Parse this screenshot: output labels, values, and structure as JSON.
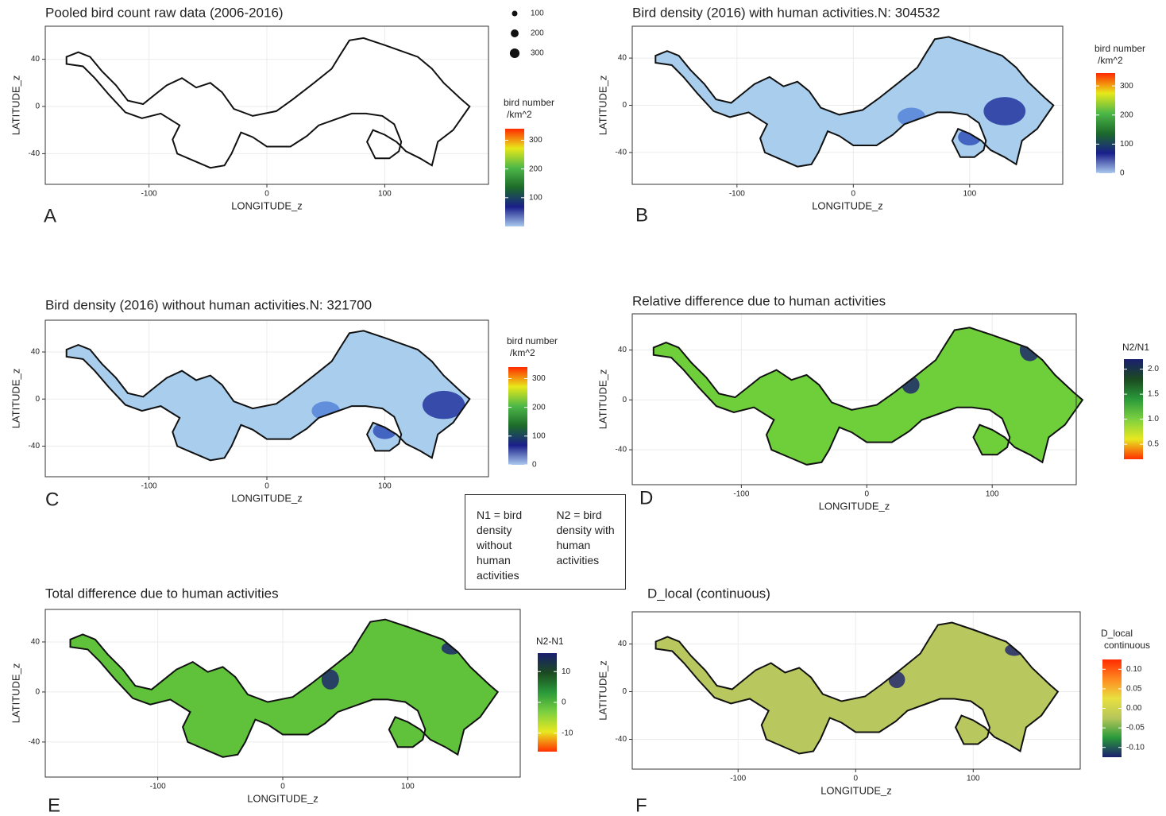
{
  "chart_data": [
    {
      "type": "map",
      "title": "Pooled bird count raw data (2006-2016)",
      "x_label": "LONGITUDE_z",
      "y_label": "LATITUDE_z",
      "panel_label": "A",
      "xlim": [
        -188,
        188
      ],
      "ylim": [
        -66,
        68
      ],
      "xticks": [
        -100,
        0,
        100
      ],
      "yticks": [
        -40,
        0,
        40
      ],
      "grid": true,
      "colorbar": {
        "title": [
          "bird number",
          "/km^2"
        ],
        "lim": [
          0,
          340
        ],
        "ticks": [
          100,
          200,
          300
        ],
        "colors": [
          "#a9c8ee",
          "#1a1f8a",
          "#1d6b2a",
          "#4db848",
          "#e8e81a",
          "#ff2a00"
        ]
      },
      "size_legend": {
        "values": [
          100,
          200,
          300
        ]
      }
    },
    {
      "type": "map",
      "title": "Bird density (2016) with human activities.N: 304532",
      "x_label": "LONGITUDE_z",
      "y_label": "LATITUDE_z",
      "panel_label": "B",
      "xlim": [
        -190,
        180
      ],
      "ylim": [
        -67,
        67
      ],
      "xticks": [
        -100,
        0,
        100
      ],
      "yticks": [
        -40,
        0,
        40
      ],
      "grid": true,
      "colorbar": {
        "title": [
          "bird number",
          "/km^2"
        ],
        "lim": [
          0,
          344
        ],
        "ticks": [
          0,
          100,
          200,
          300
        ],
        "colors": [
          "#a9c8ee",
          "#1a1f8a",
          "#1d6b2a",
          "#4db848",
          "#e8e81a",
          "#ff2a00"
        ]
      }
    },
    {
      "type": "map",
      "title": "Bird density (2016) without human activities.N: 321700",
      "x_label": "LONGITUDE_z",
      "y_label": "LATITUDE_z",
      "panel_label": "C",
      "xlim": [
        -188,
        188
      ],
      "ylim": [
        -66,
        67
      ],
      "xticks": [
        -100,
        0,
        100
      ],
      "yticks": [
        -40,
        0,
        40
      ],
      "grid": true,
      "colorbar": {
        "title": [
          "bird number",
          "/km^2"
        ],
        "lim": [
          0,
          340
        ],
        "ticks": [
          0,
          100,
          200,
          300
        ],
        "colors": [
          "#a9c8ee",
          "#1a1f8a",
          "#1d6b2a",
          "#4db848",
          "#e8e81a",
          "#ff2a00"
        ]
      }
    },
    {
      "type": "map",
      "title": "Relative difference due to human activities",
      "x_label": "LONGITUDE_z",
      "y_label": "LATITUDE_z",
      "panel_label": "D",
      "xlim": [
        -187,
        167
      ],
      "ylim": [
        -68,
        69
      ],
      "xticks": [
        -100,
        0,
        100
      ],
      "yticks": [
        -40,
        0,
        40
      ],
      "grid": true,
      "colorbar": {
        "title": [
          "N2/N1"
        ],
        "lim": [
          0.2,
          2.2
        ],
        "ticks": [
          0.5,
          {
            "value": 1,
            "label": "1.0"
          },
          1.5,
          {
            "value": 2,
            "label": "2.0"
          }
        ],
        "colors": [
          "#ff3000",
          "#e8e820",
          "#7dd040",
          "#2a9a3a",
          "#1b4a20",
          "#1a1f6e"
        ]
      }
    },
    {
      "type": "map",
      "title": "Total difference due to human activities",
      "x_label": "LONGITUDE_z",
      "y_label": "LATITUDE_z",
      "panel_label": "E",
      "xlim": [
        -190,
        190
      ],
      "ylim": [
        -68,
        66
      ],
      "xticks": [
        -100,
        0,
        100
      ],
      "yticks": [
        -40,
        0,
        40
      ],
      "grid": true,
      "colorbar": {
        "title": [
          "N2-N1"
        ],
        "lim": [
          -16,
          16
        ],
        "ticks": [
          -10,
          0,
          10
        ],
        "colors": [
          "#ff3000",
          "#e8e820",
          "#7dd040",
          "#2a9a3a",
          "#1b4a20",
          "#1a1f6e"
        ]
      }
    },
    {
      "type": "map",
      "title": "D_local (continuous)",
      "x_label": "LONGITUDE_z",
      "y_label": "LATITUDE_z",
      "panel_label": "F",
      "xlim": [
        -190,
        191
      ],
      "ylim": [
        -65,
        67
      ],
      "xticks": [
        -100,
        0,
        100
      ],
      "yticks": [
        -40,
        0,
        40
      ],
      "grid": true,
      "colorbar": {
        "title": [
          "D_local",
          "continuous"
        ],
        "lim": [
          -0.125,
          0.125
        ],
        "ticks": [
          {
            "value": -0.1,
            "label": "-0.10"
          },
          -0.05,
          {
            "value": 0,
            "label": "0.00"
          },
          0.05,
          {
            "value": 0.1,
            "label": "0.10"
          }
        ],
        "colors": [
          "#1a1f6e",
          "#2a9a3a",
          "#b5c65a",
          "#e8e040",
          "#ff8a20",
          "#ff2a00"
        ]
      }
    }
  ],
  "legend_box": {
    "n1": "N1 = bird density without human activities",
    "n2": "N2 = bird density with human activities"
  }
}
